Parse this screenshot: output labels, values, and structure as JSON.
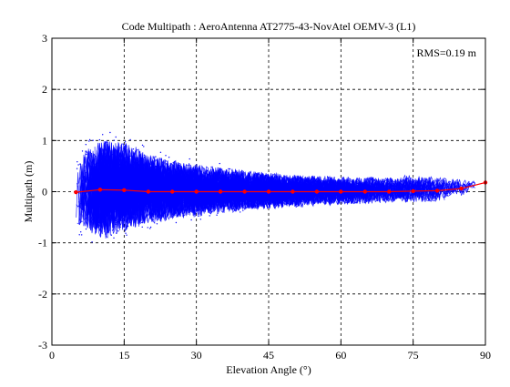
{
  "chart_data": {
    "type": "scatter",
    "title": "Code Multipath : AeroAntenna AT2775-43-NovAtel OEMV-3 (L1)",
    "xlabel": "Elevation Angle (°)",
    "ylabel": "Multipath (m)",
    "xlim": [
      0,
      90
    ],
    "ylim": [
      -3,
      3
    ],
    "xticks": [
      "0",
      "15",
      "30",
      "45",
      "60",
      "75",
      "90"
    ],
    "yticks": [
      "-3",
      "-2",
      "-1",
      "0",
      "1",
      "2",
      "3"
    ],
    "grid": true,
    "annotation": "RMS=0.19 m",
    "colors": {
      "samples": "#0000ff",
      "mean": "#ff0000",
      "axes": "#000000"
    },
    "series": [
      {
        "style": "dotted-blue-scatter",
        "envelope": {
          "x": [
            5,
            10,
            15,
            20,
            25,
            30,
            35,
            40,
            45,
            50,
            55,
            60,
            65,
            70,
            75,
            80,
            85,
            88
          ],
          "upper": [
            0.7,
            1.05,
            1.0,
            0.75,
            0.62,
            0.55,
            0.48,
            0.42,
            0.38,
            0.34,
            0.32,
            0.3,
            0.29,
            0.3,
            0.33,
            0.3,
            0.25,
            0.22
          ],
          "lower": [
            -0.7,
            -0.95,
            -0.8,
            -0.65,
            -0.55,
            -0.5,
            -0.43,
            -0.38,
            -0.34,
            -0.31,
            -0.28,
            -0.26,
            -0.24,
            -0.22,
            -0.22,
            -0.2,
            -0.1,
            0.05
          ]
        }
      },
      {
        "style": "red-mean-line",
        "x": [
          5,
          10,
          15,
          20,
          25,
          30,
          35,
          40,
          45,
          50,
          55,
          60,
          65,
          70,
          75,
          80,
          85,
          90
        ],
        "values": [
          -0.01,
          0.04,
          0.03,
          0.0,
          0.0,
          0.0,
          0.0,
          0.0,
          0.0,
          0.0,
          0.0,
          0.0,
          0.0,
          0.0,
          0.01,
          0.02,
          0.06,
          0.18
        ]
      }
    ]
  }
}
